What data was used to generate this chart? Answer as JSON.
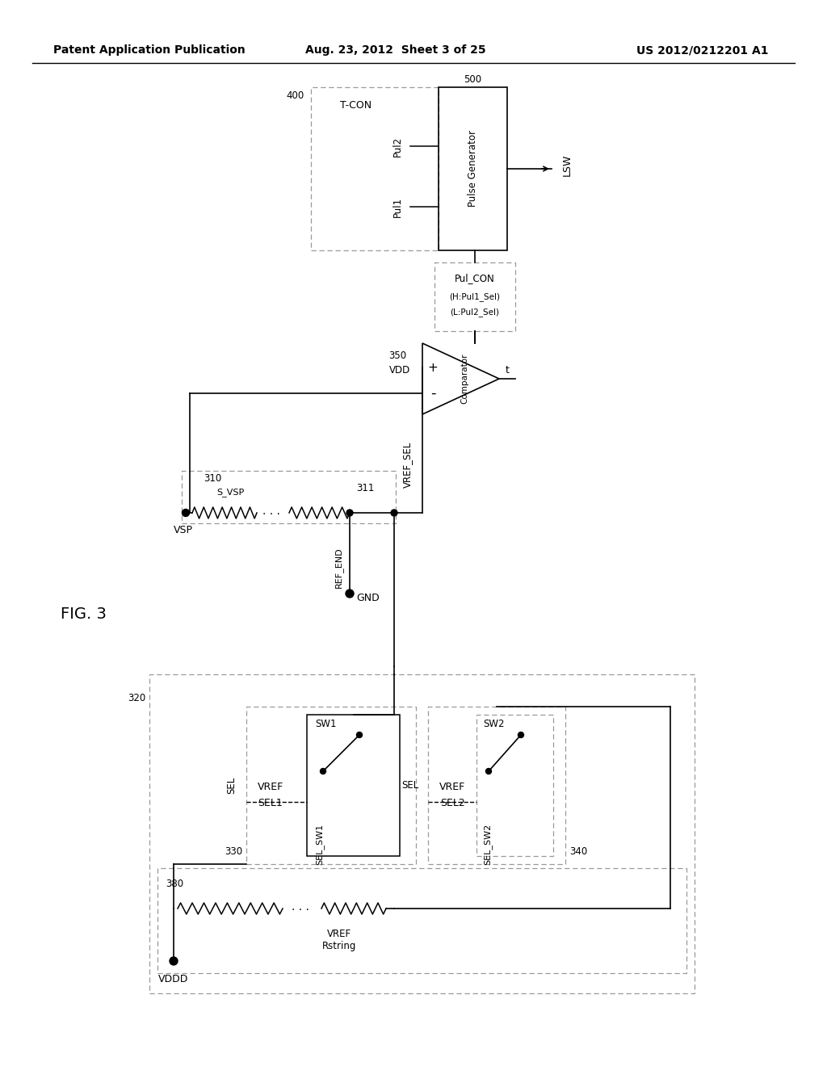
{
  "title_left": "Patent Application Publication",
  "title_mid": "Aug. 23, 2012  Sheet 3 of 25",
  "title_right": "US 2012/0212201 A1",
  "fig_label": "FIG. 3",
  "background": "#ffffff",
  "line_color": "#000000"
}
